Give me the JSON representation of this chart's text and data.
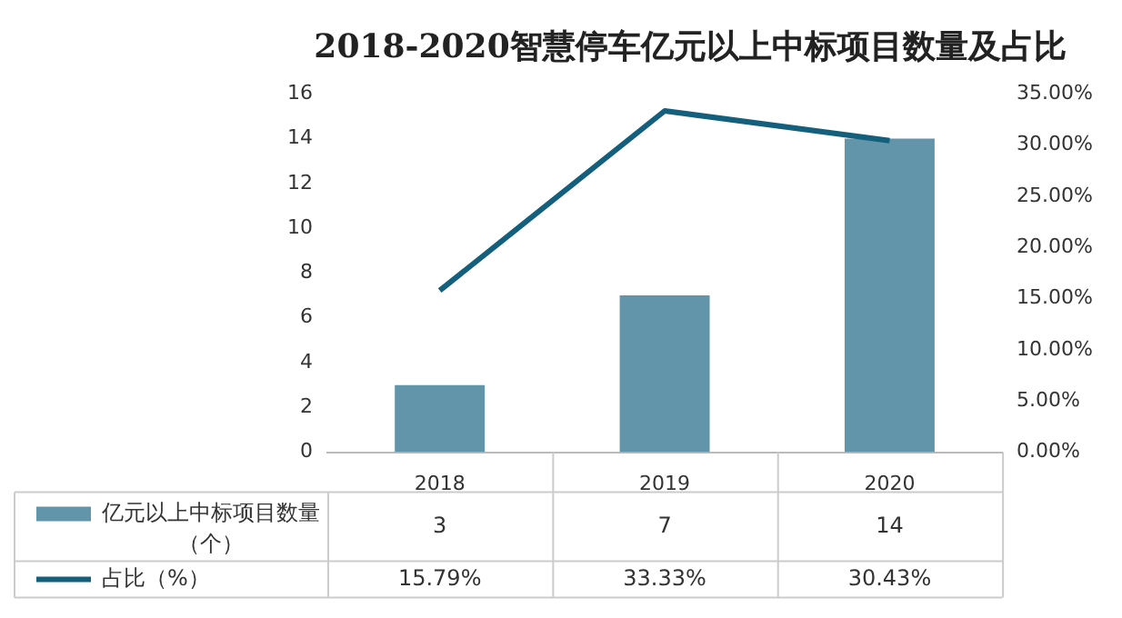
{
  "chart_data": {
    "type": "bar",
    "title": "2018-2020智慧停车亿元以上中标项目数量及占比",
    "categories": [
      "2018",
      "2019",
      "2020"
    ],
    "series": [
      {
        "name": "亿元以上中标项目数量（个）",
        "color": "#6294aa",
        "values": [
          3,
          7,
          14
        ]
      },
      {
        "name": "占比（%）",
        "type": "line",
        "axis": "y2",
        "color": "#145f7c",
        "values": [
          15.79,
          33.33,
          30.43
        ],
        "value_labels": [
          "15.79%",
          "33.33%",
          "30.43%"
        ]
      }
    ],
    "ylim": [
      0,
      16
    ],
    "yticks": [
      0,
      2,
      4,
      6,
      8,
      10,
      12,
      14,
      16
    ],
    "y2lim": [
      0,
      35
    ],
    "y2ticks": [
      {
        "value": 0,
        "label": "0.00%"
      },
      {
        "value": 5,
        "label": "5.00%"
      },
      {
        "value": 10,
        "label": "10.00%"
      },
      {
        "value": 15,
        "label": "15.00%"
      },
      {
        "value": 20,
        "label": "20.00%"
      },
      {
        "value": 25,
        "label": "25.00%"
      },
      {
        "value": 30,
        "label": "30.00%"
      },
      {
        "value": 35,
        "label": "35.00%"
      }
    ],
    "grid": false,
    "legend": "bottom",
    "data_labels": true,
    "marker": "none",
    "line_style": "solid"
  }
}
